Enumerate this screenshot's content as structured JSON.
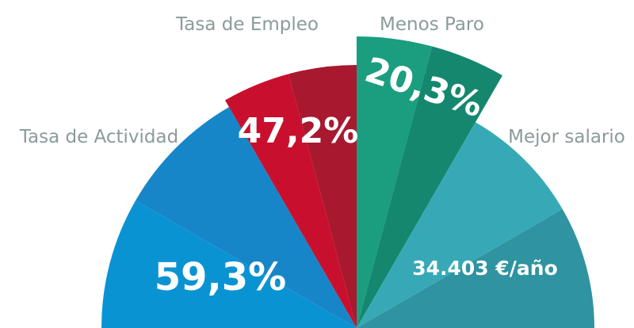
{
  "segments": [
    {
      "label": "Tasa de Actividad",
      "value": "59,3%"
    },
    {
      "label": "Tasa de Empleo",
      "value": "47,2%"
    },
    {
      "label": "Menos Paro",
      "value": "20,3%"
    },
    {
      "label": "Mejor salario",
      "value": "34.403 €/año"
    }
  ]
}
